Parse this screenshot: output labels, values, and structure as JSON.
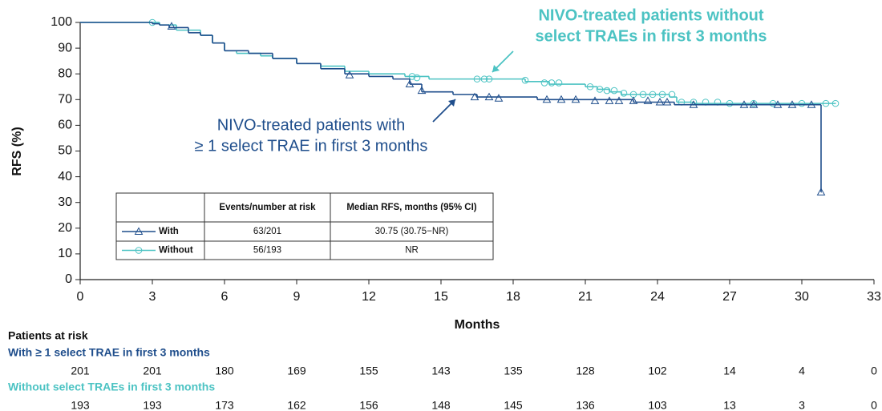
{
  "chart_data": {
    "type": "step",
    "y_label": "RFS (%)",
    "x_label": "Months",
    "xlim": [
      0,
      33
    ],
    "xticks": [
      0,
      3,
      6,
      9,
      12,
      15,
      18,
      21,
      24,
      27,
      30,
      33
    ],
    "ylim": [
      0,
      100
    ],
    "yticks": [
      0,
      10,
      20,
      30,
      40,
      50,
      60,
      70,
      80,
      90,
      100
    ],
    "series": [
      {
        "name": "With",
        "color": "#1f4e8c",
        "marker": "triangle",
        "x": [
          0,
          3,
          3.3,
          3.7,
          4.5,
          5,
          5.5,
          6,
          7,
          8,
          9,
          10,
          11,
          12,
          13,
          13.7,
          14.2,
          15.5,
          16.5,
          19,
          23,
          24.7,
          30.8
        ],
        "values": [
          100,
          99.5,
          99,
          98,
          96,
          95,
          92,
          89,
          88,
          86,
          84,
          82,
          80,
          79,
          78,
          76,
          73,
          72,
          71,
          70,
          69,
          68,
          34
        ],
        "censor_x": [
          3.8,
          11.2,
          13.7,
          14.2,
          16.4,
          17,
          17.4,
          19.4,
          20,
          20.6,
          21.4,
          22,
          22.4,
          23,
          23.6,
          24.1,
          24.4,
          25.5,
          27.6,
          28,
          29,
          29.6,
          30.4,
          30.8
        ],
        "censor_values": [
          98.5,
          79.5,
          76,
          73.5,
          71,
          71,
          70.5,
          70,
          70,
          70,
          69.5,
          69.5,
          69.5,
          69.5,
          69.5,
          69,
          69,
          68,
          68,
          68,
          68,
          68,
          68,
          34
        ]
      },
      {
        "name": "Without",
        "color": "#4cc3c3",
        "marker": "circle",
        "x": [
          0,
          3,
          3.3,
          4,
          5,
          5.5,
          6,
          6.5,
          7.5,
          8,
          9,
          10,
          11,
          12,
          13.5,
          14.5,
          18.5,
          19.5,
          21,
          21.5,
          22,
          22.5,
          24.5,
          24.8,
          25.5,
          31.4
        ],
        "values": [
          100,
          100,
          99,
          97,
          95,
          92,
          89,
          88,
          87,
          86,
          84,
          83,
          81,
          80,
          79,
          78,
          77,
          76,
          75,
          74,
          73,
          72,
          71,
          69,
          68.5,
          68.5
        ],
        "censor_x": [
          3,
          13.8,
          14,
          16.5,
          16.8,
          17,
          18.5,
          19.3,
          19.6,
          19.9,
          21.2,
          21.6,
          21.9,
          22.2,
          22.6,
          23,
          23.4,
          23.8,
          24.2,
          24.6,
          25,
          25.5,
          26,
          26.5,
          27,
          28,
          28.8,
          30,
          31,
          31.4
        ],
        "censor_values": [
          100,
          79,
          78.5,
          78,
          78,
          78,
          77.5,
          76.5,
          76.5,
          76.5,
          75,
          74,
          73.5,
          73.5,
          72.5,
          72,
          72,
          72,
          72,
          72,
          69,
          69,
          69,
          69,
          68.5,
          68.5,
          68.5,
          68.5,
          68.5,
          68.5
        ]
      }
    ],
    "annotations": [
      {
        "lines": [
          "NIVO-treated patients without",
          "select TRAEs in first 3 months"
        ],
        "color": "#4cc3c3"
      },
      {
        "lines": [
          "NIVO-treated patients with",
          "≥ 1 select TRAE in first 3 months"
        ],
        "color": "#1f4e8c"
      }
    ],
    "summary_table": {
      "header": [
        "Events/number at risk",
        "Median RFS, months (95% CI)"
      ],
      "rows": [
        [
          "63/201",
          "30.75 (30.75−NR)"
        ],
        [
          "56/193",
          "NR"
        ]
      ]
    },
    "risk_table": {
      "title": "Patients at risk",
      "groups": [
        {
          "label": "With ≥ 1 select TRAE in first 3 months",
          "color": "#1f4e8c",
          "counts": [
            201,
            201,
            180,
            169,
            155,
            143,
            135,
            128,
            102,
            14,
            4,
            0
          ]
        },
        {
          "label": "Without select TRAEs in first 3 months",
          "color": "#4cc3c3",
          "counts": [
            193,
            193,
            173,
            162,
            156,
            148,
            145,
            136,
            103,
            13,
            3,
            0
          ]
        }
      ]
    }
  }
}
